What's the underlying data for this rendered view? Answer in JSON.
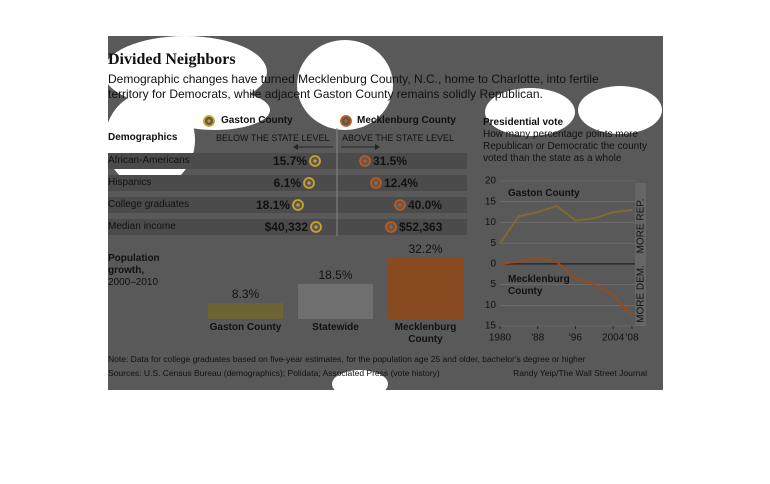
{
  "header": {
    "title": "Divided Neighbors",
    "subtitle": "Demographic changes have turned Mecklenburg County, N.C., home to Charlotte, into fertile territory for Democrats, while adjacent Gaston County remains solidly Republican."
  },
  "demographics": {
    "title": "Demographics",
    "columns": [
      "Gaston County",
      "Mecklenburg County"
    ],
    "below": "BELOW THE STATE LEVEL",
    "above": "ABOVE THE STATE LEVEL",
    "rows": [
      {
        "label": "African-Americans",
        "gaston": "15.7%",
        "mecklenburg": "31.5%"
      },
      {
        "label": "Hispanics",
        "gaston": "6.1%",
        "mecklenburg": "12.4%"
      },
      {
        "label": "College graduates",
        "gaston": "18.1%",
        "mecklenburg": "40.0%"
      },
      {
        "label": "Median income",
        "gaston": "$40,332",
        "mecklenburg": "$52,363"
      }
    ]
  },
  "chart_data": [
    {
      "type": "bar",
      "title": "Population growth,",
      "subtitle": "2000–2010",
      "categories": [
        "Gaston County",
        "Statewide",
        "Mecklenburg County"
      ],
      "values": [
        8.3,
        18.5,
        32.2
      ],
      "value_labels": [
        "8.3%",
        "18.5%",
        "32.2%"
      ],
      "colors": [
        "#6e6433",
        "#6f6f6f",
        "#8a4a1f"
      ]
    },
    {
      "type": "line",
      "title": "Presidential vote",
      "subtitle": "How many percentage points more Republican or Democratic the county voted than the state as a whole",
      "x": [
        1980,
        1984,
        1988,
        1992,
        1996,
        2000,
        2004,
        2008
      ],
      "series": [
        {
          "name": "Gaston County",
          "color": "#7d6c2c",
          "values": [
            5,
            11.5,
            12.5,
            14,
            10.5,
            11,
            12.5,
            13
          ]
        },
        {
          "name": "Mecklenburg County",
          "color": "#9a4a18",
          "values": [
            0,
            0.5,
            1.5,
            0.5,
            -3.5,
            -5,
            -7.5,
            -12.5
          ]
        }
      ],
      "xlim": [
        1980,
        2008
      ],
      "xticks": [
        1980,
        {
          "value": 1988,
          "label": "'88"
        },
        {
          "value": 1996,
          "label": "'96"
        },
        2004,
        {
          "value": 2008,
          "label": "'08"
        }
      ],
      "ylim": [
        -15,
        20
      ],
      "yticks": [
        20,
        15,
        10,
        5,
        0,
        {
          "value": -5,
          "label": "5"
        },
        {
          "value": -10,
          "label": "10"
        },
        {
          "value": -15,
          "label": "15"
        }
      ],
      "grid": true,
      "side_labels": [
        "MORE REP.",
        "MORE DEM."
      ]
    }
  ],
  "footer": {
    "note": "Note: Data for college graduates based on five-year estimates, for the population age 25 and older, bachelor's degree or higher",
    "sources": "Sources: U.S. Census Bureau (demographics); Polidata; Associated Press (vote history)",
    "credit": "Randy Yeip/The Wall Street Journal"
  }
}
